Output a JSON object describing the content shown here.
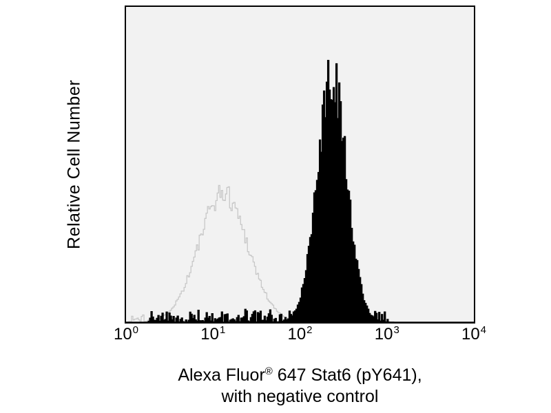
{
  "figure": {
    "y_axis_label": "Relative Cell Number",
    "caption": {
      "line1_prefix": "Alexa Fluor",
      "line1_reg": "®",
      "line1_suffix": " 647 Stat6 (pY641),",
      "line2": "with negative control"
    }
  },
  "chart_data": {
    "type": "histogram",
    "title": "",
    "xlabel": "Alexa Fluor® 647 Stat6 (pY641), with negative control",
    "ylabel": "Relative Cell Number",
    "x_scale": "log10",
    "x_range_log": [
      0,
      4
    ],
    "x_ticks": [
      {
        "base": "10",
        "exp": "0"
      },
      {
        "base": "10",
        "exp": "1"
      },
      {
        "base": "10",
        "exp": "2"
      },
      {
        "base": "10",
        "exp": "3"
      },
      {
        "base": "10",
        "exp": "4"
      }
    ],
    "y_axis": "relative, unlabeled (no ticks)",
    "grid": false,
    "legend": "none",
    "plot_bg": "#f2f2f2",
    "border_color": "#000000",
    "series": [
      {
        "name": "negative control",
        "style": "open-outline",
        "line_color": "#c8c8c8",
        "fill_color": "none",
        "peak_x": 13,
        "peak_log10": 1.11,
        "peak_rel_height": 0.41,
        "log_sigma": 0.28,
        "jitter": 0.09,
        "noise_floor": 0.025,
        "noise_range_log": [
          0.03,
          0.55
        ]
      },
      {
        "name": "Alexa Fluor 647 Stat6 (pY641)",
        "style": "filled",
        "line_color": "#000000",
        "fill_color": "#000000",
        "peak_x": 230,
        "peak_log10": 2.36,
        "peak_rel_height": 0.78,
        "log_sigma": 0.17,
        "jitter": 0.11,
        "noise_floor": 0.04,
        "noise_range_log": [
          0.25,
          3.0
        ]
      }
    ]
  }
}
